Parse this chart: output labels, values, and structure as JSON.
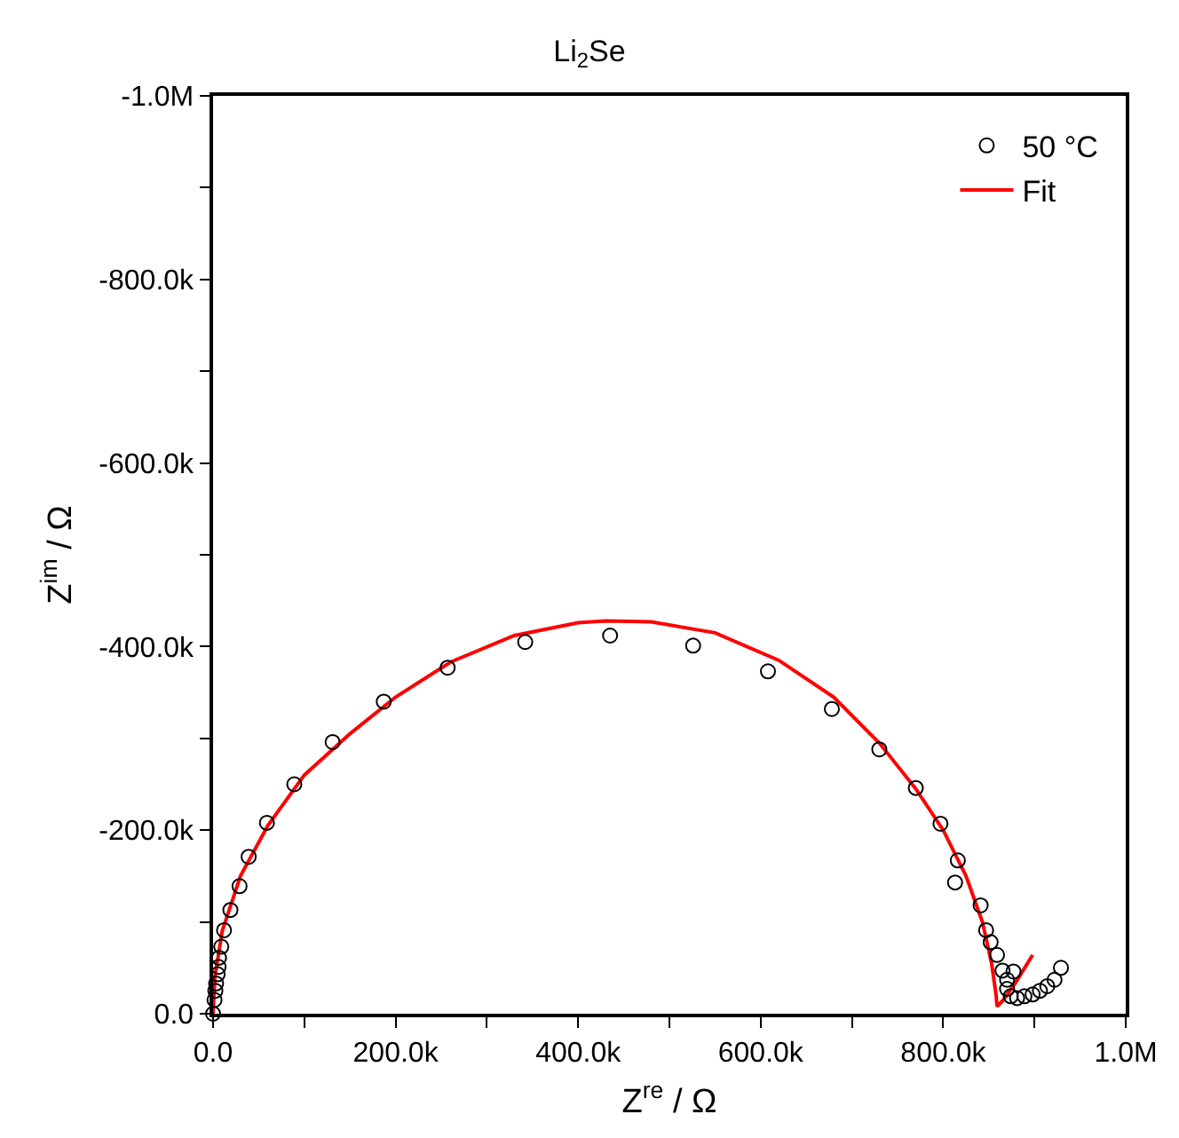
{
  "chart_data": {
    "type": "scatter",
    "title": "Li$_{2}$Se",
    "xlabel": "Z$^{re}$ / Ω",
    "ylabel": "Z$^{im}$ / Ω",
    "xlim": [
      0,
      1000000
    ],
    "ylim": [
      0,
      -1000000
    ],
    "xticks": [
      {
        "value": 0,
        "label": "0.0"
      },
      {
        "value": 100000,
        "label": null
      },
      {
        "value": 200000,
        "label": "200.0k"
      },
      {
        "value": 300000,
        "label": null
      },
      {
        "value": 400000,
        "label": "400.0k"
      },
      {
        "value": 500000,
        "label": null
      },
      {
        "value": 600000,
        "label": "600.0k"
      },
      {
        "value": 700000,
        "label": null
      },
      {
        "value": 800000,
        "label": "800.0k"
      },
      {
        "value": 900000,
        "label": null
      },
      {
        "value": 1000000,
        "label": "1.0M"
      }
    ],
    "yticks": [
      {
        "value": 0,
        "label": "0.0"
      },
      {
        "value": -100000,
        "label": null
      },
      {
        "value": -200000,
        "label": "-200.0k"
      },
      {
        "value": -300000,
        "label": null
      },
      {
        "value": -400000,
        "label": "-400.0k"
      },
      {
        "value": -500000,
        "label": null
      },
      {
        "value": -600000,
        "label": "-600.0k"
      },
      {
        "value": -700000,
        "label": null
      },
      {
        "value": -800000,
        "label": "-800.0k"
      },
      {
        "value": -900000,
        "label": null
      },
      {
        "value": -1000000,
        "label": "-1.0M"
      }
    ],
    "legend": "top right",
    "series": [
      {
        "name": "50 °C",
        "marker": "circle",
        "color": "#000000",
        "x": [
          0,
          1600,
          2500,
          3300,
          5000,
          6000,
          6500,
          9000,
          12000,
          19000,
          29000,
          39000,
          59000,
          89000,
          131000,
          187000,
          257000,
          342000,
          435000,
          526000,
          608000,
          678000,
          730000,
          770000,
          797000,
          816000,
          813000,
          841000,
          847000,
          852000,
          859000,
          865000,
          870000,
          870000,
          874000,
          877000,
          881000,
          889000,
          898000,
          906000,
          914000,
          922000,
          929000
        ],
        "values": [
          0,
          -15000,
          -25000,
          -33000,
          -43000,
          -51000,
          -61000,
          -73000,
          -91000,
          -113000,
          -139000,
          -171000,
          -208000,
          -250000,
          -296000,
          -340000,
          -377000,
          -405000,
          -412000,
          -401000,
          -373000,
          -332000,
          -288000,
          -246000,
          -207000,
          -167000,
          -143000,
          -118000,
          -91000,
          -78000,
          -64000,
          -47000,
          -37000,
          -27000,
          -19000,
          -46000,
          -17000,
          -19000,
          -21000,
          -25000,
          -30000,
          -37000,
          -50000
        ]
      },
      {
        "name": "Fit",
        "type": "line",
        "line_style": "solid",
        "color": "#ff0000",
        "x": [
          0,
          2000,
          10000,
          30000,
          60000,
          100000,
          150000,
          200000,
          260000,
          330000,
          400000,
          430000,
          480000,
          550000,
          620000,
          680000,
          730000,
          770000,
          800000,
          825000,
          843000,
          853000,
          858000,
          859000,
          866000,
          880000,
          898000
        ],
        "values": [
          0,
          -40000,
          -90000,
          -150000,
          -205000,
          -260000,
          -305000,
          -345000,
          -383000,
          -412000,
          -426000,
          -428000,
          -427000,
          -415000,
          -385000,
          -345000,
          -295000,
          -245000,
          -200000,
          -150000,
          -100000,
          -55000,
          -20000,
          -8000,
          -15000,
          -35000,
          -64000
        ]
      }
    ]
  }
}
